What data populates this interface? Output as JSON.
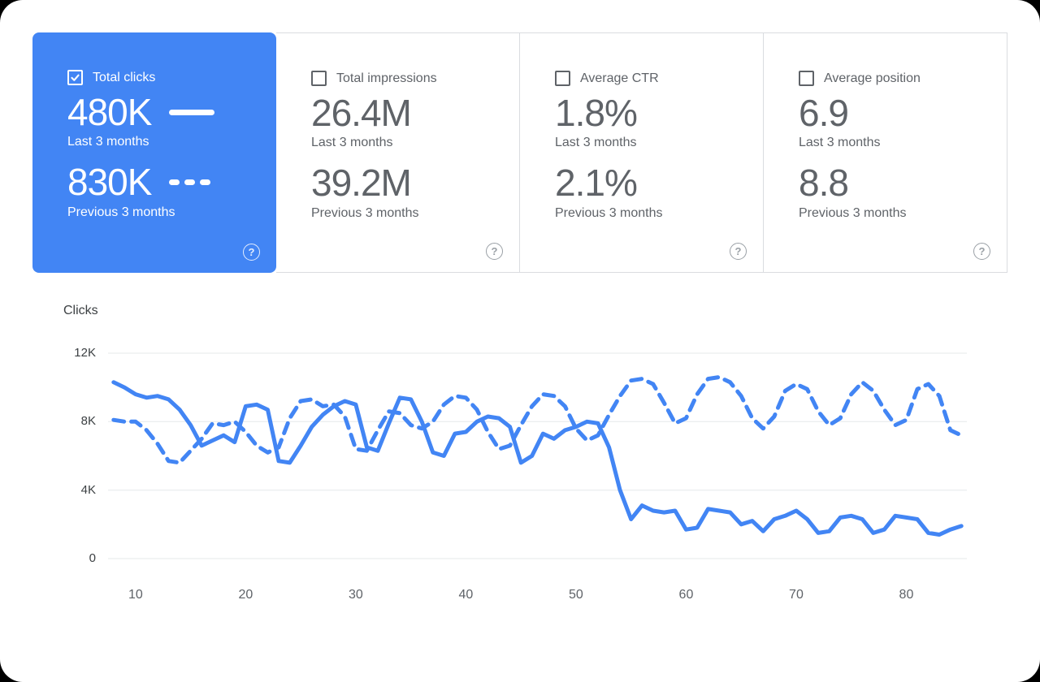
{
  "colors": {
    "accent": "#4285f4",
    "selected_card_bg": "#4285f4",
    "label_gray": "#5f6368",
    "value_gray": "#5f6368",
    "card_border": "#dadce0",
    "grid": "#e6e8ea"
  },
  "cards": [
    {
      "label": "Total clicks",
      "checked": true,
      "selected": true,
      "primary_value": "480K",
      "primary_caption": "Last 3 months",
      "secondary_value": "830K",
      "secondary_caption": "Previous 3 months",
      "help_icon": "?"
    },
    {
      "label": "Total impressions",
      "checked": false,
      "selected": false,
      "primary_value": "26.4M",
      "primary_caption": "Last 3 months",
      "secondary_value": "39.2M",
      "secondary_caption": "Previous 3 months",
      "help_icon": "?"
    },
    {
      "label": "Average CTR",
      "checked": false,
      "selected": false,
      "primary_value": "1.8%",
      "primary_caption": "Last 3 months",
      "secondary_value": "2.1%",
      "secondary_caption": "Previous 3 months",
      "help_icon": "?"
    },
    {
      "label": "Average position",
      "checked": false,
      "selected": false,
      "primary_value": "6.9",
      "primary_caption": "Last 3 months",
      "secondary_value": "8.8",
      "secondary_caption": "Previous 3 months",
      "help_icon": "?"
    }
  ],
  "chart_data": {
    "type": "line",
    "title": "Clicks",
    "y_unit": "K",
    "ylim": [
      0,
      12
    ],
    "xlim": [
      7.5,
      85.5
    ],
    "grid": true,
    "yticks": [
      {
        "value": 12,
        "label": "12K"
      },
      {
        "value": 8,
        "label": "8K"
      },
      {
        "value": 4,
        "label": "4K"
      },
      {
        "value": 0,
        "label": "0"
      }
    ],
    "xticks": [
      10,
      20,
      30,
      40,
      50,
      60,
      70,
      80
    ],
    "line_color": "#4285f4",
    "series": [
      {
        "name": "Last 3 months",
        "style": "solid",
        "x_start": 8,
        "x_step": 1,
        "values": [
          10.3,
          10.0,
          9.6,
          9.4,
          9.5,
          9.3,
          8.7,
          7.8,
          6.6,
          6.9,
          7.2,
          6.8,
          8.9,
          9.0,
          8.7,
          5.7,
          5.6,
          6.6,
          7.7,
          8.4,
          8.9,
          9.2,
          9.0,
          6.5,
          6.3,
          7.9,
          9.4,
          9.3,
          8.0,
          6.2,
          6.0,
          7.3,
          7.4,
          8.0,
          8.3,
          8.2,
          7.7,
          5.6,
          6.0,
          7.3,
          7.0,
          7.5,
          7.7,
          8.0,
          7.9,
          6.5,
          4.0,
          2.3,
          3.1,
          2.8,
          2.7,
          2.8,
          1.7,
          1.8,
          2.9,
          2.8,
          2.7,
          2.0,
          2.2,
          1.6,
          2.3,
          2.5,
          2.8,
          2.3,
          1.5,
          1.6,
          2.4,
          2.5,
          2.3,
          1.5,
          1.7,
          2.5,
          2.4,
          2.3,
          1.5,
          1.4,
          1.7,
          1.9
        ]
      },
      {
        "name": "Previous 3 months",
        "style": "dashed",
        "x_start": 8,
        "x_step": 1,
        "values": [
          8.1,
          8.0,
          8.0,
          7.5,
          6.7,
          5.7,
          5.6,
          6.3,
          7.0,
          7.9,
          7.8,
          8.0,
          7.4,
          6.6,
          6.2,
          6.5,
          8.2,
          9.2,
          9.3,
          8.9,
          9.0,
          8.3,
          6.4,
          6.3,
          7.5,
          8.6,
          8.5,
          7.8,
          7.6,
          8.0,
          9.0,
          9.5,
          9.4,
          8.7,
          7.4,
          6.4,
          6.6,
          7.8,
          8.9,
          9.6,
          9.5,
          8.9,
          7.6,
          6.9,
          7.2,
          8.4,
          9.5,
          10.4,
          10.5,
          10.2,
          9.1,
          7.9,
          8.2,
          9.6,
          10.5,
          10.6,
          10.3,
          9.5,
          8.2,
          7.6,
          8.3,
          9.8,
          10.2,
          9.9,
          8.6,
          7.8,
          8.2,
          9.6,
          10.3,
          9.8,
          8.7,
          7.8,
          8.1,
          9.9,
          10.2,
          9.5,
          7.5,
          7.2
        ]
      }
    ]
  }
}
